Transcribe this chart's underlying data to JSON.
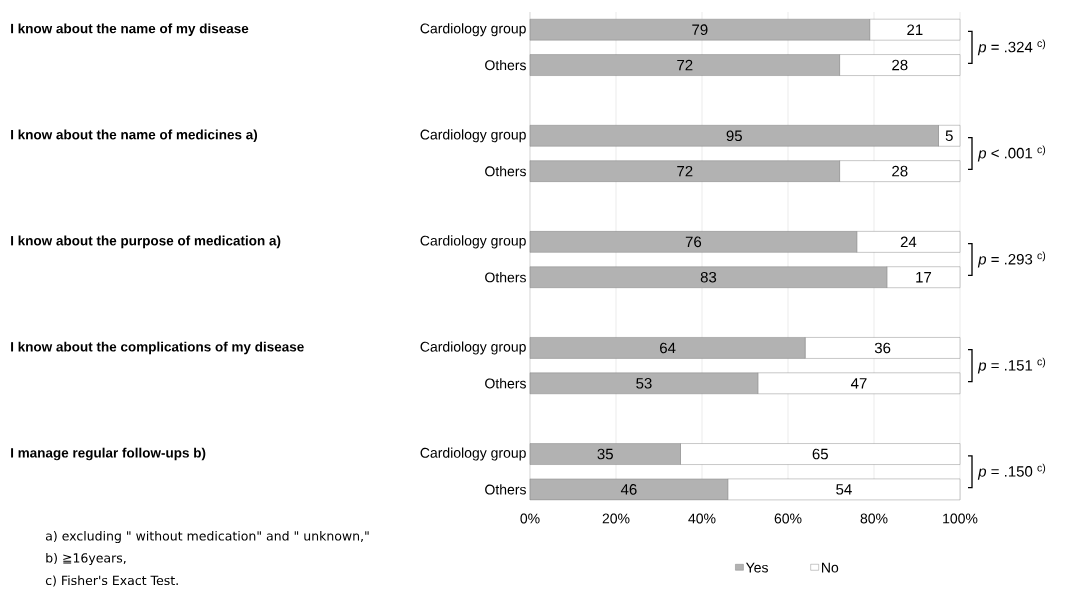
{
  "chart_data": {
    "type": "bar",
    "orientation": "horizontal",
    "stacked": true,
    "categories": [
      "Cardiology group",
      "Others",
      "Cardiology group",
      "Others",
      "Cardiology group",
      "Others",
      "Cardiology group",
      "Others",
      "Cardiology group",
      "Others"
    ],
    "series": [
      {
        "name": "Yes",
        "color": "#b2b2b2",
        "values": [
          79,
          72,
          95,
          72,
          76,
          83,
          64,
          53,
          35,
          46
        ]
      },
      {
        "name": "No",
        "color": "#ffffff",
        "values": [
          21,
          28,
          5,
          28,
          24,
          17,
          36,
          47,
          65,
          54
        ]
      }
    ],
    "xlim": [
      0,
      100
    ],
    "xticks": [
      {
        "value": 0,
        "label": "0%"
      },
      {
        "value": 20,
        "label": "20%"
      },
      {
        "value": 40,
        "label": "40%"
      },
      {
        "value": 60,
        "label": "60%"
      },
      {
        "value": 80,
        "label": "80%"
      },
      {
        "value": 100,
        "label": "100%"
      }
    ],
    "grid": "x",
    "legend": "bottom",
    "data_labels": true,
    "annotations": [
      "I know about the name of my disease",
      "I know about the name of medicines  a)",
      "I know about the purpose  of medication  a)",
      "I know about the complications of my disease",
      "I manage regular follow-ups  b)",
      "*p* = .324 $^{c)}$",
      "*p* < .001 $^{c)}$",
      "*p* = .293 $^{c)}$",
      "*p* = .151 $^{c)}$",
      "*p* = .150 $^{c)}$",
      "a) excluding \" without medication\" and \" unknown,\"",
      "b) ≧16years,",
      "c) Fisher's Exact Test."
    ]
  }
}
